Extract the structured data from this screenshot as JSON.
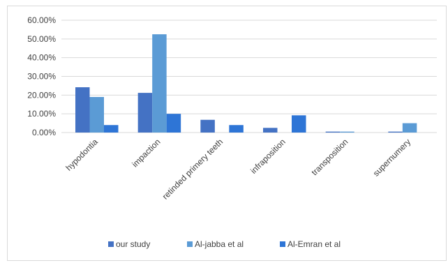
{
  "chart_data": {
    "type": "bar",
    "categories": [
      "hypodontia",
      "impaction",
      "retinded primery teeth",
      "infraposition",
      "transposition",
      "supernumery"
    ],
    "series": [
      {
        "name": "our study",
        "color": "#4472c4",
        "values": [
          24.2,
          21.2,
          6.8,
          2.5,
          0.5,
          0.5
        ]
      },
      {
        "name": "Al-jabba et al",
        "color": "#5b9bd5",
        "values": [
          19.0,
          52.5,
          0.0,
          0.0,
          0.5,
          5.0
        ]
      },
      {
        "name": "Al-Emran et al",
        "color": "#2e75d6",
        "values": [
          4.0,
          10.0,
          4.0,
          9.2,
          0.0,
          0.0
        ]
      }
    ],
    "y_ticks": [
      "0.00%",
      "10.00%",
      "20.00%",
      "30.00%",
      "40.00%",
      "50.00%",
      "60.00%"
    ],
    "ylim": [
      0,
      60
    ],
    "grid": true,
    "legend_position": "bottom",
    "title": "",
    "xlabel": "",
    "ylabel": ""
  }
}
